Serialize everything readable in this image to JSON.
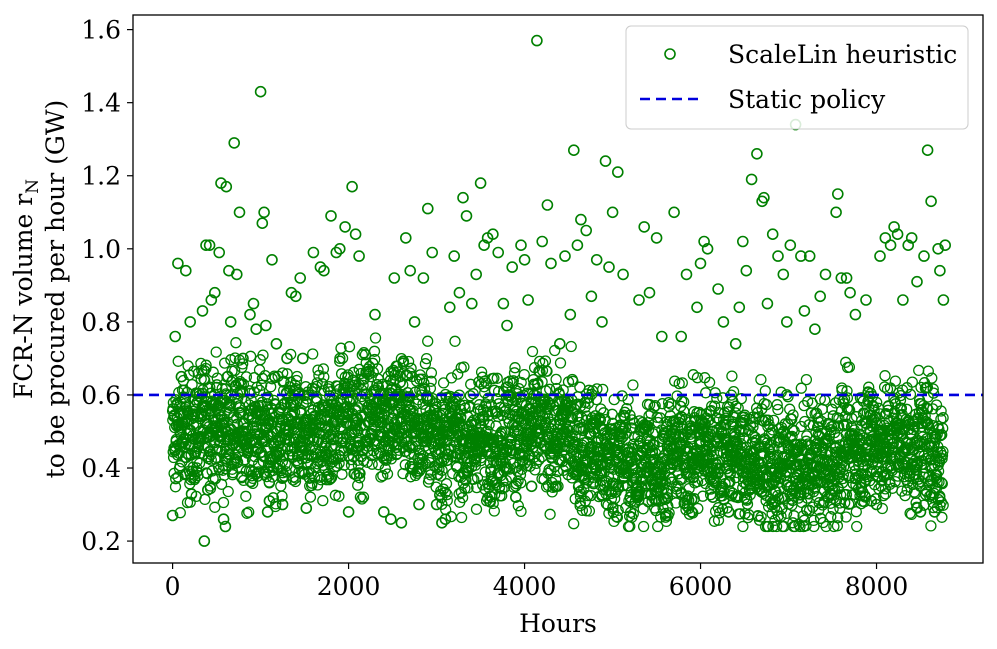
{
  "chart_data": {
    "type": "scatter",
    "xlabel": "Hours",
    "ylabel_line1": "FCR-N volume r",
    "ylabel_sub": "N",
    "ylabel_line2": "to be procured per hour (GW)",
    "xlim": [
      -450,
      9210
    ],
    "ylim": [
      0.14,
      1.64
    ],
    "x_ticks": [
      0,
      2000,
      4000,
      6000,
      8000
    ],
    "x_tick_labels": [
      "0",
      "2000",
      "4000",
      "6000",
      "8000"
    ],
    "y_ticks": [
      0.2,
      0.4,
      0.6,
      0.8,
      1.0,
      1.2,
      1.4,
      1.6
    ],
    "y_tick_labels": [
      "0.2",
      "0.4",
      "0.6",
      "0.8",
      "1.0",
      "1.2",
      "1.4",
      "1.6"
    ],
    "grid": false,
    "legend_position": "top-right",
    "series": [
      {
        "name": "ScaleLin heuristic",
        "kind": "scatter",
        "marker": "open-circle",
        "color": "#008000",
        "points": [
          [
            0,
            0.27
          ],
          [
            30,
            0.76
          ],
          [
            60,
            0.96
          ],
          [
            100,
            0.65
          ],
          [
            150,
            0.94
          ],
          [
            200,
            0.8
          ],
          [
            280,
            0.58
          ],
          [
            320,
            0.55
          ],
          [
            340,
            0.83
          ],
          [
            380,
            1.01
          ],
          [
            360,
            0.2
          ],
          [
            400,
            0.34
          ],
          [
            420,
            1.01
          ],
          [
            440,
            0.86
          ],
          [
            480,
            0.88
          ],
          [
            500,
            0.62
          ],
          [
            530,
            0.99
          ],
          [
            550,
            1.18
          ],
          [
            580,
            0.26
          ],
          [
            600,
            0.24
          ],
          [
            610,
            1.17
          ],
          [
            640,
            0.94
          ],
          [
            660,
            0.8
          ],
          [
            700,
            1.29
          ],
          [
            730,
            0.93
          ],
          [
            760,
            1.1
          ],
          [
            800,
            0.7
          ],
          [
            880,
            0.82
          ],
          [
            920,
            0.85
          ],
          [
            950,
            0.78
          ],
          [
            1000,
            1.43
          ],
          [
            1020,
            1.07
          ],
          [
            1040,
            1.1
          ],
          [
            1060,
            0.79
          ],
          [
            1080,
            0.28
          ],
          [
            1100,
            0.31
          ],
          [
            1130,
            0.97
          ],
          [
            1180,
            0.74
          ],
          [
            1250,
            0.3
          ],
          [
            1300,
            0.7
          ],
          [
            1350,
            0.88
          ],
          [
            1400,
            0.87
          ],
          [
            1450,
            0.92
          ],
          [
            1480,
            0.7
          ],
          [
            1520,
            0.29
          ],
          [
            1600,
            0.99
          ],
          [
            1680,
            0.95
          ],
          [
            1720,
            0.94
          ],
          [
            1800,
            1.09
          ],
          [
            1860,
            0.99
          ],
          [
            1900,
            1.0
          ],
          [
            1960,
            1.06
          ],
          [
            2000,
            0.28
          ],
          [
            2040,
            1.17
          ],
          [
            2080,
            1.04
          ],
          [
            2120,
            0.98
          ],
          [
            2200,
            0.66
          ],
          [
            2300,
            0.82
          ],
          [
            2400,
            0.28
          ],
          [
            2480,
            0.26
          ],
          [
            2520,
            0.92
          ],
          [
            2600,
            0.25
          ],
          [
            2650,
            1.03
          ],
          [
            2700,
            0.94
          ],
          [
            2750,
            0.8
          ],
          [
            2800,
            0.3
          ],
          [
            2850,
            0.92
          ],
          [
            2900,
            1.11
          ],
          [
            2950,
            0.99
          ],
          [
            3000,
            0.3
          ],
          [
            3060,
            0.25
          ],
          [
            3100,
            0.26
          ],
          [
            3150,
            0.84
          ],
          [
            3200,
            0.98
          ],
          [
            3260,
            0.88
          ],
          [
            3300,
            1.14
          ],
          [
            3340,
            1.09
          ],
          [
            3400,
            0.85
          ],
          [
            3450,
            0.93
          ],
          [
            3500,
            1.18
          ],
          [
            3540,
            1.01
          ],
          [
            3580,
            1.03
          ],
          [
            3640,
            1.04
          ],
          [
            3700,
            0.99
          ],
          [
            3760,
            0.85
          ],
          [
            3800,
            0.79
          ],
          [
            3860,
            0.95
          ],
          [
            3900,
            0.32
          ],
          [
            3960,
            1.01
          ],
          [
            4000,
            0.97
          ],
          [
            4040,
            0.86
          ],
          [
            4080,
            0.35
          ],
          [
            4140,
            1.57
          ],
          [
            4200,
            1.02
          ],
          [
            4260,
            1.12
          ],
          [
            4300,
            0.96
          ],
          [
            4360,
            0.35
          ],
          [
            4400,
            0.74
          ],
          [
            4460,
            0.98
          ],
          [
            4520,
            0.82
          ],
          [
            4560,
            1.27
          ],
          [
            4600,
            1.01
          ],
          [
            4640,
            1.08
          ],
          [
            4700,
            1.05
          ],
          [
            4760,
            0.87
          ],
          [
            4820,
            0.97
          ],
          [
            4880,
            0.8
          ],
          [
            4920,
            1.24
          ],
          [
            4960,
            0.95
          ],
          [
            5000,
            1.1
          ],
          [
            5060,
            1.21
          ],
          [
            5120,
            0.93
          ],
          [
            5200,
            0.32
          ],
          [
            5300,
            0.86
          ],
          [
            5360,
            1.06
          ],
          [
            5420,
            0.88
          ],
          [
            5500,
            1.03
          ],
          [
            5560,
            0.76
          ],
          [
            5620,
            0.33
          ],
          [
            5700,
            1.1
          ],
          [
            5780,
            0.76
          ],
          [
            5840,
            0.93
          ],
          [
            5900,
            0.28
          ],
          [
            5960,
            0.84
          ],
          [
            6000,
            0.96
          ],
          [
            6040,
            1.02
          ],
          [
            6080,
            1.0
          ],
          [
            6140,
            0.32
          ],
          [
            6200,
            0.89
          ],
          [
            6260,
            0.8
          ],
          [
            6320,
            0.28
          ],
          [
            6400,
            0.74
          ],
          [
            6440,
            0.84
          ],
          [
            6480,
            1.02
          ],
          [
            6520,
            0.94
          ],
          [
            6580,
            1.19
          ],
          [
            6640,
            1.26
          ],
          [
            6700,
            1.13
          ],
          [
            6720,
            1.14
          ],
          [
            6760,
            0.85
          ],
          [
            6820,
            1.04
          ],
          [
            6880,
            0.98
          ],
          [
            6940,
            0.93
          ],
          [
            6980,
            0.8
          ],
          [
            7020,
            1.01
          ],
          [
            7080,
            1.34
          ],
          [
            7140,
            0.98
          ],
          [
            7180,
            0.83
          ],
          [
            7240,
            0.98
          ],
          [
            7300,
            0.78
          ],
          [
            7360,
            0.87
          ],
          [
            7420,
            0.93
          ],
          [
            7480,
            0.33
          ],
          [
            7540,
            1.1
          ],
          [
            7560,
            1.15
          ],
          [
            7600,
            0.92
          ],
          [
            7660,
            0.92
          ],
          [
            7700,
            0.88
          ],
          [
            7760,
            0.82
          ],
          [
            7820,
            0.36
          ],
          [
            7880,
            0.86
          ],
          [
            7940,
            0.31
          ],
          [
            8000,
            0.3
          ],
          [
            8040,
            0.98
          ],
          [
            8100,
            1.03
          ],
          [
            8160,
            1.01
          ],
          [
            8200,
            1.06
          ],
          [
            8240,
            1.04
          ],
          [
            8300,
            0.86
          ],
          [
            8360,
            1.01
          ],
          [
            8400,
            1.03
          ],
          [
            8460,
            0.91
          ],
          [
            8500,
            0.28
          ],
          [
            8540,
            0.98
          ],
          [
            8580,
            1.27
          ],
          [
            8620,
            1.13
          ],
          [
            8660,
            0.28
          ],
          [
            8700,
            1.0
          ],
          [
            8720,
            0.94
          ],
          [
            8760,
            0.86
          ],
          [
            8780,
            1.01
          ]
        ]
      },
      {
        "name": "Static policy",
        "kind": "line",
        "style": "dashed",
        "color": "#0000dd",
        "y": 0.6
      }
    ]
  }
}
